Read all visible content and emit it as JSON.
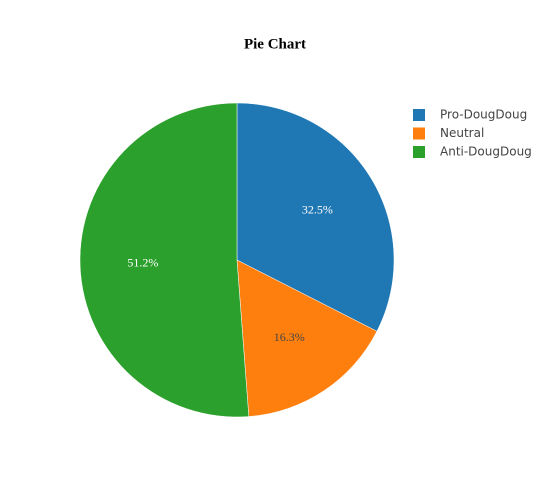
{
  "chart_data": {
    "type": "pie",
    "title": "Pie Chart",
    "categories": [
      "Pro-DougDoug",
      "Neutral",
      "Anti-DougDoug"
    ],
    "values": [
      32.5,
      16.3,
      51.2
    ],
    "value_labels": [
      "32.5%",
      "16.3%",
      "51.2%"
    ],
    "colors": [
      "#1f77b4",
      "#ff7f0e",
      "#2ca02c"
    ],
    "legend": "top-right"
  }
}
